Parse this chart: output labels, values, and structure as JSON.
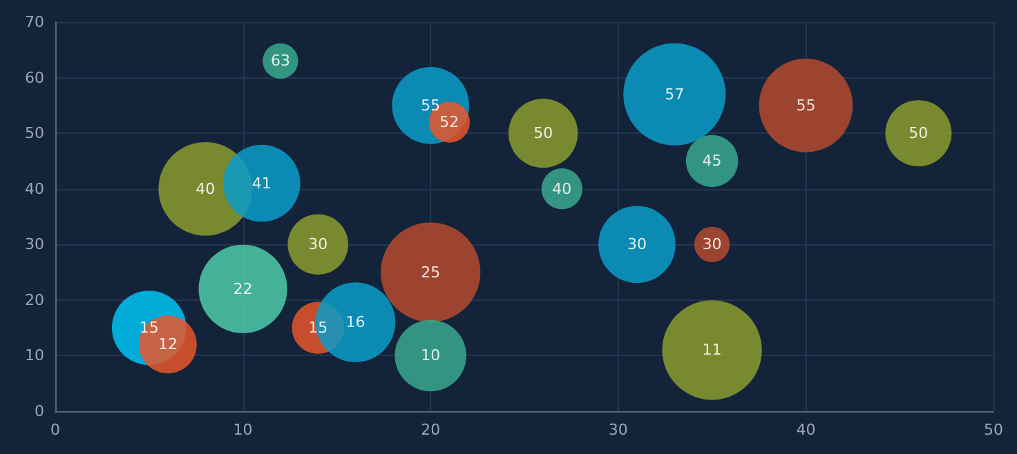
{
  "chart_data": {
    "type": "bubble",
    "x": [
      5,
      6,
      8,
      11,
      12,
      10,
      14,
      14,
      16,
      20,
      21,
      20,
      20,
      26,
      27,
      31,
      33,
      35,
      35,
      35,
      40,
      46
    ],
    "values": [
      15,
      12,
      40,
      41,
      63,
      22,
      30,
      15,
      16,
      55,
      52,
      25,
      10,
      50,
      40,
      30,
      57,
      45,
      30,
      11,
      55,
      50
    ],
    "sizes": [
      0.53,
      0.32,
      0.84,
      0.57,
      0.12,
      0.75,
      0.35,
      0.26,
      0.61,
      0.57,
      0.16,
      0.95,
      0.49,
      0.46,
      0.16,
      0.57,
      1,
      0.26,
      0.12,
      0.95,
      0.84,
      0.42
    ],
    "colors": [
      "#00c3f5",
      "#e8562a",
      "#8c9b2e",
      "#0a9cc9",
      "#3aa88f",
      "#4ecba9",
      "#8c9b2e",
      "#e8562a",
      "#0a9cc9",
      "#0a9cc9",
      "#e8562a",
      "#b54a2e",
      "#3aa88f",
      "#8c9b2e",
      "#3aa88f",
      "#0a9cc9",
      "#0a9cc9",
      "#3aa88f",
      "#b54a2e",
      "#8c9b2e",
      "#b54a2e",
      "#8c9b2e"
    ],
    "xlim": [
      0,
      50
    ],
    "xticks": [
      0,
      10,
      20,
      30,
      40,
      50
    ],
    "ylim": [
      0,
      70
    ],
    "yticks": [
      0,
      10,
      20,
      30,
      40,
      50,
      60,
      70
    ],
    "grid": true,
    "data_labels": true
  }
}
